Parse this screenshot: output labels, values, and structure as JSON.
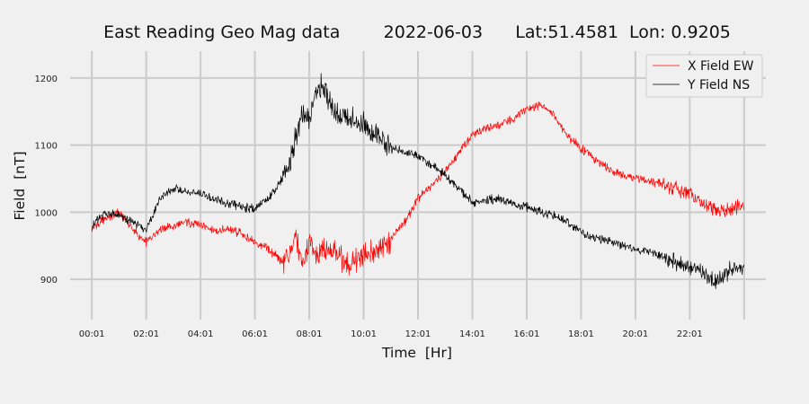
{
  "chart_data": {
    "type": "line",
    "title": "East Reading Geo Mag data        2022-06-03      Lat:51.4581  Lon: 0.9205",
    "xlabel": "Time  [Hr]",
    "ylabel": "Field  [nT]",
    "xlim": [
      -0.8,
      24.8
    ],
    "ylim": [
      840,
      1240
    ],
    "x_ticks": [
      0,
      2,
      4,
      6,
      8,
      10,
      12,
      14,
      16,
      18,
      20,
      22,
      24
    ],
    "x_tick_labels": [
      "00:01",
      "02:01",
      "04:01",
      "06:01",
      "08:01",
      "10:01",
      "12:01",
      "14:01",
      "16:01",
      "18:01",
      "20:01",
      "22:01",
      ""
    ],
    "y_ticks": [
      900,
      1000,
      1100,
      1200
    ],
    "y_tick_labels": [
      "900",
      "1000",
      "1100",
      "1200"
    ],
    "grid": true,
    "legend_position": "top-right",
    "colors": {
      "background": "#f0f0f0",
      "grid": "#cbcbcb",
      "x_series": "#ff0000",
      "y_series": "#000000"
    },
    "series": [
      {
        "name": "X Field EW",
        "color": "#ff0000",
        "x": [
          0,
          0.5,
          1,
          1.5,
          2,
          2.5,
          3,
          3.5,
          4,
          4.5,
          5,
          5.5,
          6,
          6.5,
          7,
          7.25,
          7.5,
          7.75,
          8,
          8.25,
          8.5,
          8.75,
          9,
          9.5,
          10,
          10.5,
          11,
          11.5,
          12,
          12.5,
          13,
          13.5,
          14,
          14.5,
          15,
          15.5,
          16,
          16.5,
          17,
          17.5,
          18,
          18.5,
          19,
          19.5,
          20,
          20.5,
          21,
          21.5,
          22,
          22.5,
          23,
          23.5,
          24
        ],
        "y": [
          975,
          990,
          1000,
          975,
          955,
          975,
          980,
          985,
          982,
          972,
          975,
          968,
          955,
          945,
          925,
          935,
          960,
          920,
          960,
          935,
          950,
          938,
          940,
          920,
          935,
          945,
          960,
          985,
          1020,
          1040,
          1060,
          1090,
          1115,
          1125,
          1130,
          1140,
          1155,
          1160,
          1145,
          1115,
          1095,
          1080,
          1065,
          1055,
          1052,
          1045,
          1043,
          1035,
          1028,
          1012,
          1000,
          1005,
          1010
        ]
      },
      {
        "name": "Y Field NS",
        "color": "#000000",
        "x": [
          0,
          0.5,
          1,
          1.5,
          2,
          2.5,
          3,
          3.5,
          4,
          4.5,
          5,
          5.5,
          6,
          6.5,
          7,
          7.25,
          7.5,
          7.75,
          8,
          8.25,
          8.5,
          8.75,
          9,
          9.5,
          10,
          10.5,
          11,
          11.5,
          12,
          12.5,
          13,
          13.5,
          14,
          14.5,
          15,
          15.5,
          16,
          16.5,
          17,
          17.5,
          18,
          18.5,
          19,
          19.5,
          20,
          20.5,
          21,
          21.5,
          22,
          22.5,
          23,
          23.5,
          24
        ],
        "y": [
          980,
          1000,
          995,
          985,
          975,
          1020,
          1035,
          1030,
          1028,
          1020,
          1012,
          1008,
          1005,
          1020,
          1050,
          1070,
          1110,
          1150,
          1140,
          1180,
          1190,
          1160,
          1150,
          1140,
          1130,
          1110,
          1095,
          1090,
          1085,
          1070,
          1055,
          1035,
          1015,
          1018,
          1020,
          1012,
          1008,
          1000,
          995,
          985,
          970,
          960,
          958,
          952,
          945,
          940,
          935,
          925,
          915,
          910,
          895,
          915,
          920
        ]
      }
    ]
  }
}
